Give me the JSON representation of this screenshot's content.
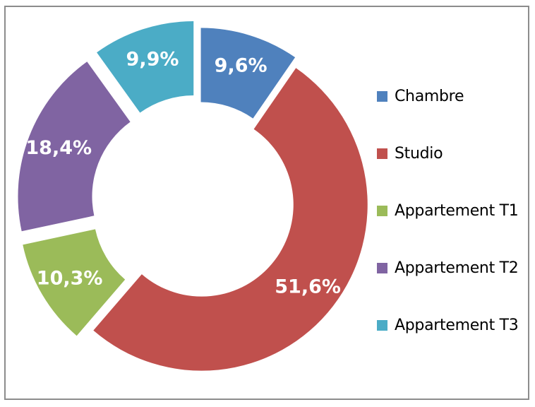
{
  "chart_data": {
    "type": "pie",
    "title": "",
    "categories": [
      "Chambre",
      "Studio",
      "Appartement T1",
      "Appartement T2",
      "Appartement T3"
    ],
    "values": [
      9.6,
      51.6,
      10.3,
      18.4,
      9.9
    ],
    "value_labels": [
      "9,6%",
      "51,6%",
      "10,3%",
      "18,4%",
      "9,9%"
    ],
    "colors": [
      "#4f81bd",
      "#c0504d",
      "#9bbb59",
      "#8064a2",
      "#4bacc6"
    ],
    "donut": true,
    "exploded": true,
    "legend_position": "right"
  }
}
